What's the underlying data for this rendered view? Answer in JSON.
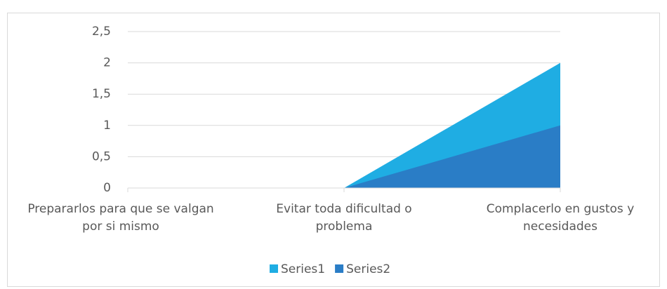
{
  "chart_data": {
    "type": "area",
    "categories": [
      "Prepararlos para que se valgan por si mismo",
      "Evitar toda dificultad o problema",
      "Complacerlo en gustos y necesidades"
    ],
    "series": [
      {
        "name": "Series1",
        "color": "#1fade3",
        "values": [
          0,
          0,
          2
        ]
      },
      {
        "name": "Series2",
        "color": "#2a7dc6",
        "values": [
          0,
          0,
          1
        ]
      }
    ],
    "ylim": [
      0,
      2.5
    ],
    "yticks": [
      0,
      {
        "value": 0.5,
        "label": "0,5"
      },
      1,
      {
        "value": 1.5,
        "label": "1,5"
      },
      2,
      {
        "value": 2.5,
        "label": "2,5"
      }
    ],
    "grid": true,
    "legend": "bottom"
  }
}
